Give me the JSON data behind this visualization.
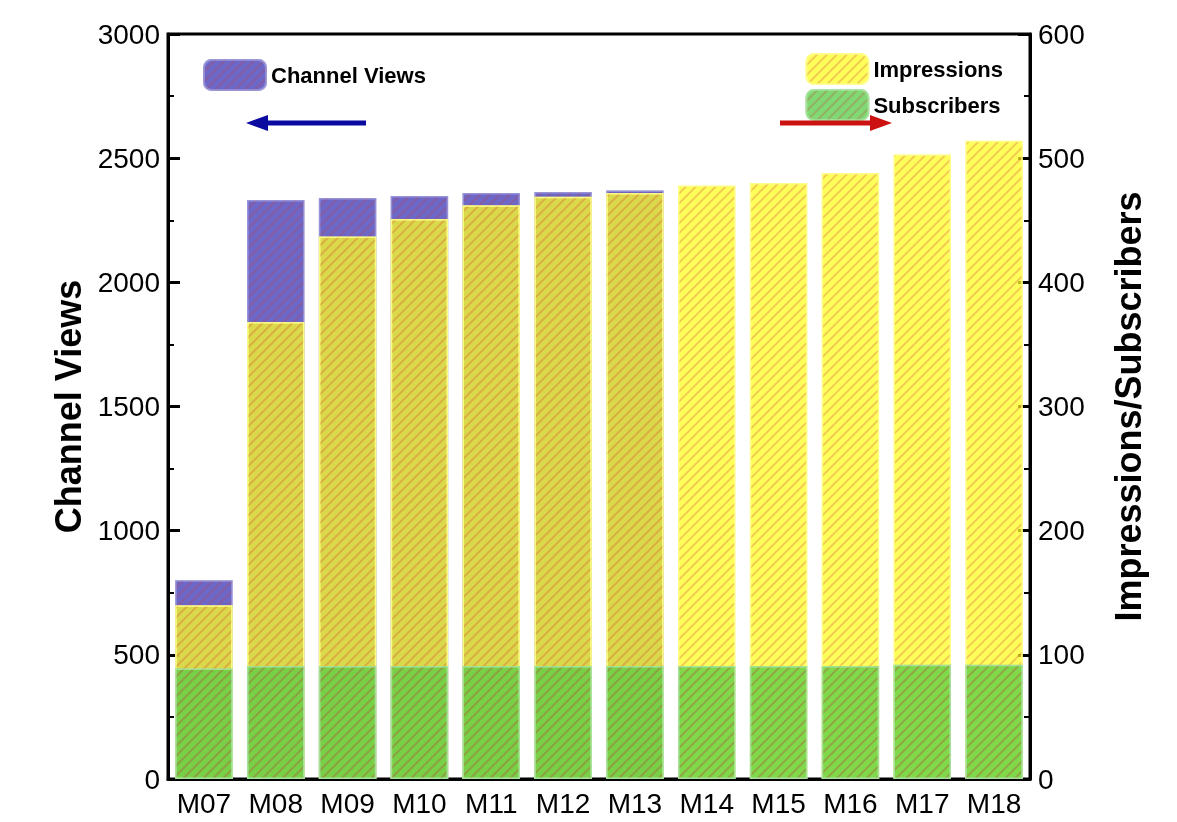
{
  "chart_data": {
    "type": "bar",
    "ylabel": "Channel Views",
    "y2label": "Impressions/Subscribers",
    "categories": [
      "M07",
      "M08",
      "M09",
      "M10",
      "M11",
      "M12",
      "M13",
      "M14",
      "M15",
      "M16",
      "M17",
      "M18"
    ],
    "series": [
      {
        "name": "Channel Views",
        "color": "#3c34b4",
        "values": [
          800,
          2332,
          2340,
          2348,
          2360,
          2364,
          2370,
          null,
          null,
          null,
          null,
          null
        ]
      },
      {
        "name": "Impressions",
        "color": "#ffff22",
        "axis": "y2",
        "values": [
          140,
          368,
          437,
          451,
          462,
          469,
          472,
          478,
          480,
          488,
          503,
          514
        ]
      },
      {
        "name": "Subscribers",
        "color": "#55cc44",
        "axis": "y2",
        "values": [
          89,
          91,
          91,
          91,
          91,
          91,
          91,
          91,
          91,
          91,
          92,
          92
        ]
      }
    ],
    "ylim": [
      0,
      3000
    ],
    "yticks": [
      0,
      500,
      1000,
      1500,
      2000,
      2500,
      3000
    ],
    "y2lim": [
      0,
      600
    ],
    "y2ticks": [
      0,
      100,
      200,
      300,
      400,
      500,
      600
    ],
    "legend": "top",
    "grid": false
  }
}
